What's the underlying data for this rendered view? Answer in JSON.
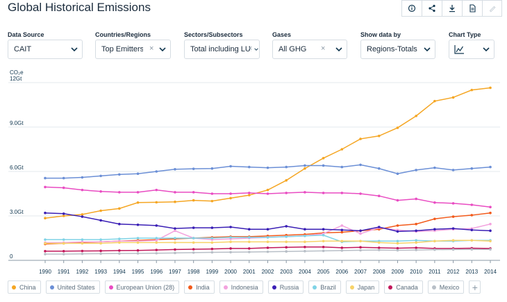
{
  "page": {
    "title": "Global Historical Emissions"
  },
  "toolbar": {
    "icons": [
      "info-icon",
      "share-icon",
      "download-icon",
      "pdf-icon",
      "edit-icon"
    ]
  },
  "filters": [
    {
      "label": "Data Source",
      "value": "CAIT",
      "clearable": false
    },
    {
      "label": "Countries/Regions",
      "value": "Top Emitters",
      "clearable": true
    },
    {
      "label": "Sectors/Subsectors",
      "value": "Total including LU...",
      "clearable": true
    },
    {
      "label": "Gases",
      "value": "All GHG",
      "clearable": true
    },
    {
      "label": "Show data by",
      "value": "Regions-Totals",
      "clearable": false
    },
    {
      "label": "Chart Type",
      "value": "line-chart-icon",
      "clearable": false
    }
  ],
  "chart_data": {
    "type": "line",
    "ylabel": "CO₂e",
    "ylim": [
      0,
      12
    ],
    "yticks": [
      {
        "v": 0,
        "label": "0"
      },
      {
        "v": 3,
        "label": "3.0Gt"
      },
      {
        "v": 6,
        "label": "6.0Gt"
      },
      {
        "v": 9,
        "label": "9.0Gt"
      },
      {
        "v": 12,
        "label": "12Gt"
      }
    ],
    "x": [
      1990,
      1991,
      1992,
      1993,
      1994,
      1995,
      1996,
      1997,
      1998,
      1999,
      2000,
      2001,
      2002,
      2003,
      2004,
      2005,
      2006,
      2007,
      2008,
      2009,
      2010,
      2011,
      2012,
      2013,
      2014
    ],
    "series": [
      {
        "name": "China",
        "color": "#f5a623",
        "values": [
          2.85,
          3.0,
          3.1,
          3.35,
          3.5,
          3.9,
          3.92,
          3.95,
          4.05,
          4.0,
          4.2,
          4.4,
          4.75,
          5.4,
          6.2,
          6.9,
          7.5,
          8.2,
          8.4,
          8.95,
          9.75,
          10.75,
          11.0,
          11.5,
          11.65
        ]
      },
      {
        "name": "United States",
        "color": "#6b8fd6",
        "values": [
          5.55,
          5.55,
          5.6,
          5.7,
          5.8,
          5.85,
          6.0,
          6.15,
          6.18,
          6.2,
          6.35,
          6.3,
          6.25,
          6.3,
          6.4,
          6.4,
          6.3,
          6.45,
          6.2,
          5.85,
          6.1,
          6.25,
          6.1,
          6.2,
          6.3
        ]
      },
      {
        "name": "European Union (28)",
        "color": "#e94cc2",
        "values": [
          4.95,
          4.9,
          4.75,
          4.65,
          4.6,
          4.6,
          4.75,
          4.6,
          4.6,
          4.5,
          4.5,
          4.55,
          4.5,
          4.55,
          4.6,
          4.55,
          4.55,
          4.5,
          4.35,
          4.05,
          4.15,
          3.9,
          3.85,
          3.75,
          3.6
        ]
      },
      {
        "name": "India",
        "color": "#f25a1b",
        "values": [
          1.1,
          1.15,
          1.2,
          1.25,
          1.3,
          1.35,
          1.4,
          1.45,
          1.5,
          1.55,
          1.6,
          1.6,
          1.65,
          1.7,
          1.75,
          1.85,
          1.9,
          2.0,
          2.1,
          2.35,
          2.45,
          2.8,
          2.95,
          3.05,
          3.2
        ]
      },
      {
        "name": "Indonesia",
        "color": "#f3a3de",
        "values": [
          1.2,
          1.2,
          1.25,
          1.25,
          1.3,
          1.3,
          1.35,
          2.0,
          1.5,
          1.4,
          1.45,
          1.5,
          1.55,
          1.6,
          1.65,
          1.8,
          2.35,
          1.8,
          2.2,
          2.05,
          1.95,
          2.0,
          2.1,
          2.15,
          2.45
        ]
      },
      {
        "name": "Russia",
        "color": "#3a1fb5",
        "values": [
          3.2,
          3.15,
          2.95,
          2.7,
          2.45,
          2.4,
          2.35,
          2.15,
          2.2,
          2.2,
          2.25,
          2.1,
          2.1,
          2.3,
          2.1,
          2.1,
          2.05,
          2.0,
          2.25,
          1.95,
          2.0,
          2.1,
          2.15,
          2.05,
          2.0
        ]
      },
      {
        "name": "Brazil",
        "color": "#7fd3e6",
        "values": [
          1.4,
          1.4,
          1.4,
          1.4,
          1.45,
          1.5,
          1.5,
          1.5,
          1.5,
          1.5,
          1.55,
          1.55,
          1.55,
          1.6,
          1.65,
          1.7,
          1.25,
          1.3,
          1.3,
          1.3,
          1.35,
          1.3,
          1.3,
          1.35,
          1.35
        ]
      },
      {
        "name": "Japan",
        "color": "#f7d36a",
        "values": [
          1.15,
          1.15,
          1.15,
          1.15,
          1.2,
          1.2,
          1.2,
          1.2,
          1.2,
          1.2,
          1.25,
          1.25,
          1.25,
          1.25,
          1.25,
          1.3,
          1.3,
          1.3,
          1.2,
          1.15,
          1.2,
          1.3,
          1.35,
          1.35,
          1.3
        ]
      },
      {
        "name": "Canada",
        "color": "#c2185b",
        "values": [
          0.62,
          0.62,
          0.63,
          0.64,
          0.66,
          0.67,
          0.7,
          0.73,
          0.75,
          0.77,
          0.8,
          0.8,
          0.85,
          0.88,
          0.9,
          0.9,
          0.85,
          0.88,
          0.85,
          0.82,
          0.85,
          0.8,
          0.8,
          0.82,
          0.8
        ]
      },
      {
        "name": "Mexico",
        "color": "#b8bfc7",
        "values": [
          0.42,
          0.42,
          0.44,
          0.45,
          0.46,
          0.47,
          0.48,
          0.5,
          0.52,
          0.54,
          0.55,
          0.56,
          0.58,
          0.6,
          0.62,
          0.64,
          0.66,
          0.68,
          0.7,
          0.68,
          0.7,
          0.72,
          0.73,
          0.74,
          0.74
        ]
      }
    ]
  },
  "legend": {
    "add_label": "+"
  }
}
